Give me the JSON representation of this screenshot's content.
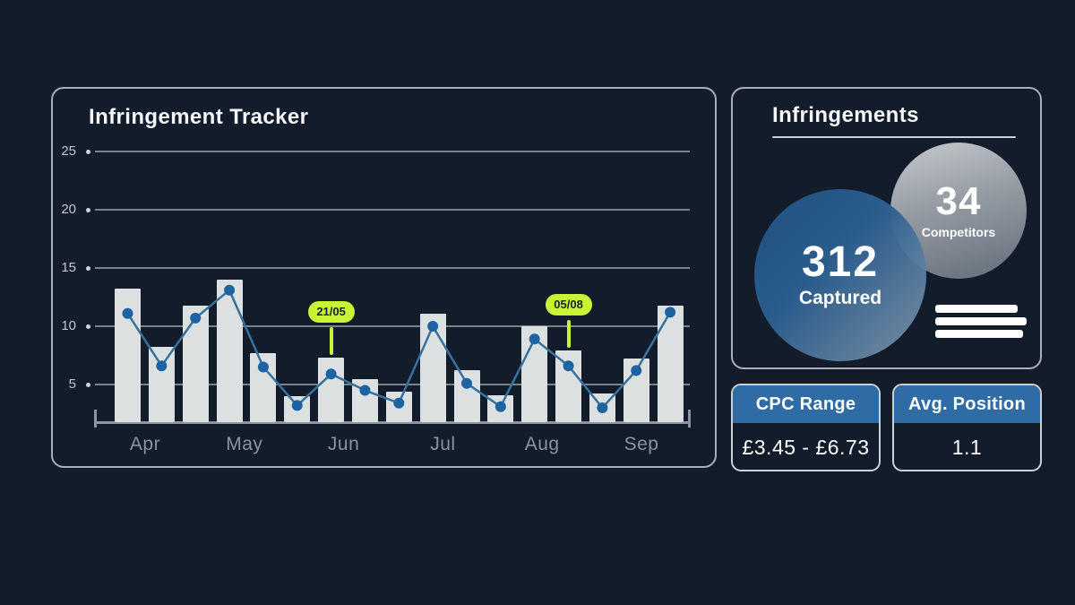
{
  "colors": {
    "background": "#121c2b",
    "panel_border": "#a9afb8",
    "bar_fill": "#dde0e1",
    "gridline": "#8d959e",
    "axis_label": "#8b939e",
    "trend_line": "#36719f",
    "trend_dot": "#1d63a4",
    "annotation": "#c7f434",
    "annotation_text": "#17222f",
    "card_header_blue": "#2f6ca5"
  },
  "tracker": {
    "title": "Infringement Tracker"
  },
  "chart_data": {
    "type": "bar",
    "title": "Infringement Tracker",
    "categories_months": [
      "Apr",
      "May",
      "Jun",
      "Jul",
      "Aug",
      "Sep"
    ],
    "y_ticks": [
      25,
      20,
      15,
      10,
      5
    ],
    "ylim": [
      0,
      25
    ],
    "grid": true,
    "legend": "none",
    "series": [
      {
        "name": "infringements-bars",
        "type": "bar",
        "values": [
          13.2,
          8.2,
          11.8,
          14.0,
          7.7,
          4.0,
          7.3,
          5.5,
          4.4,
          11.1,
          6.2,
          4.1,
          10.0,
          7.9,
          4.2,
          7.2,
          11.8
        ]
      },
      {
        "name": "infringements-trend",
        "type": "line",
        "values": [
          11.1,
          6.6,
          10.7,
          13.1,
          6.5,
          3.2,
          5.9,
          4.5,
          3.4,
          10.0,
          5.1,
          3.1,
          8.9,
          6.6,
          3.0,
          6.2,
          11.2
        ]
      }
    ],
    "annotations": [
      {
        "label": "21/05",
        "point_index": 6
      },
      {
        "label": "05/08",
        "point_index": 13
      }
    ]
  },
  "infringements": {
    "title": "Infringements",
    "captured": {
      "value": "312",
      "label": "Captured"
    },
    "competitors": {
      "value": "34",
      "label": "Competitors"
    }
  },
  "cards": {
    "cpc": {
      "title": "CPC Range",
      "value": "£3.45 - £6.73"
    },
    "avg_position": {
      "title": "Avg. Position",
      "value": "1.1"
    }
  }
}
